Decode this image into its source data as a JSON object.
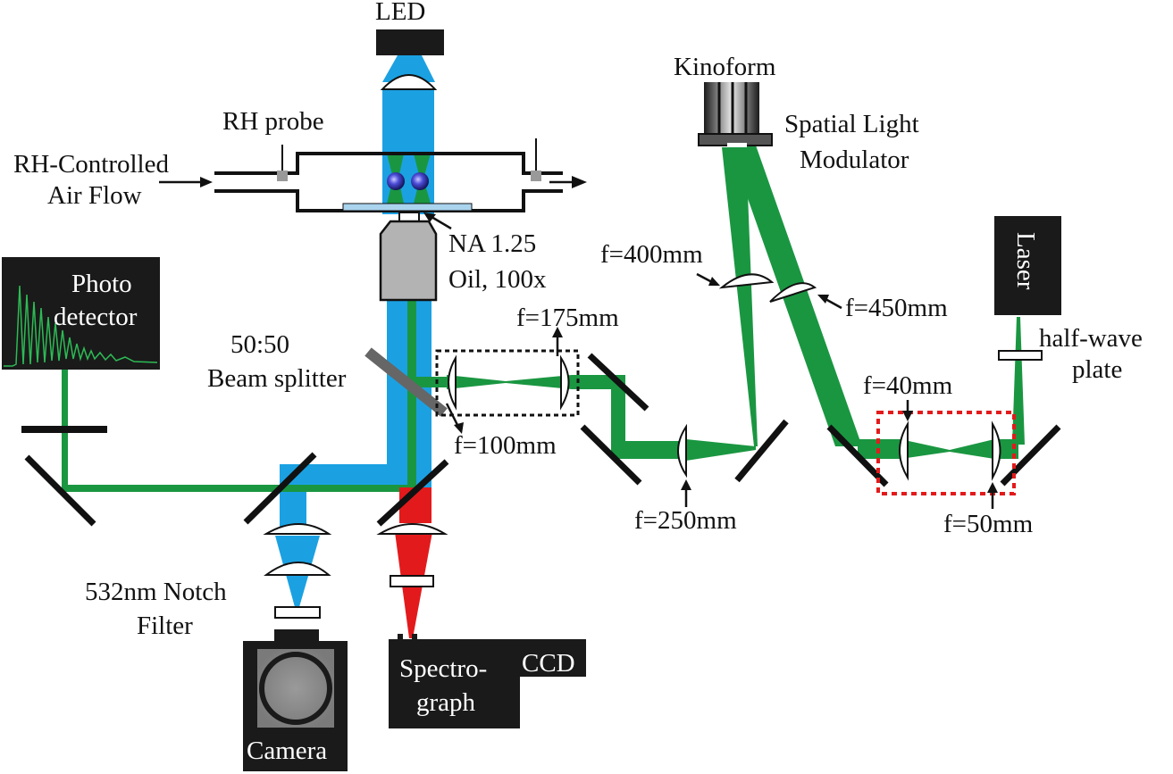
{
  "labels": {
    "led": "LED",
    "rh_probe": "RH probe",
    "rh_controlled_1": "RH-Controlled",
    "rh_controlled_2": "Air Flow",
    "na_1": "NA 1.25",
    "na_2": "Oil, 100x",
    "kinoform": "Kinoform",
    "slm_1": "Spatial Light",
    "slm_2": "Modulator",
    "f400": "f=400mm",
    "f450": "f=450mm",
    "laser": "Laser",
    "halfwave_1": "half-wave",
    "halfwave_2": "plate",
    "photo_1": "Photo",
    "photo_2": "detector",
    "f175": "f=175mm",
    "bs_1": "50:50",
    "bs_2": "Beam splitter",
    "f100": "f=100mm",
    "f40": "f=40mm",
    "f250": "f=250mm",
    "f50": "f=50mm",
    "notch_1": "532nm Notch",
    "notch_2": "Filter",
    "spectro_1": "Spectro-",
    "spectro_2": "graph",
    "ccd": "CCD",
    "camera": "Camera"
  },
  "colors": {
    "led_beam": "#1ba1e2",
    "laser_beam": "#1a9641",
    "raman_beam": "#e31a1c",
    "objective": "#b3b3b3",
    "dark_box": "#1a1a1a",
    "highlight_box": "#e31a1c"
  }
}
